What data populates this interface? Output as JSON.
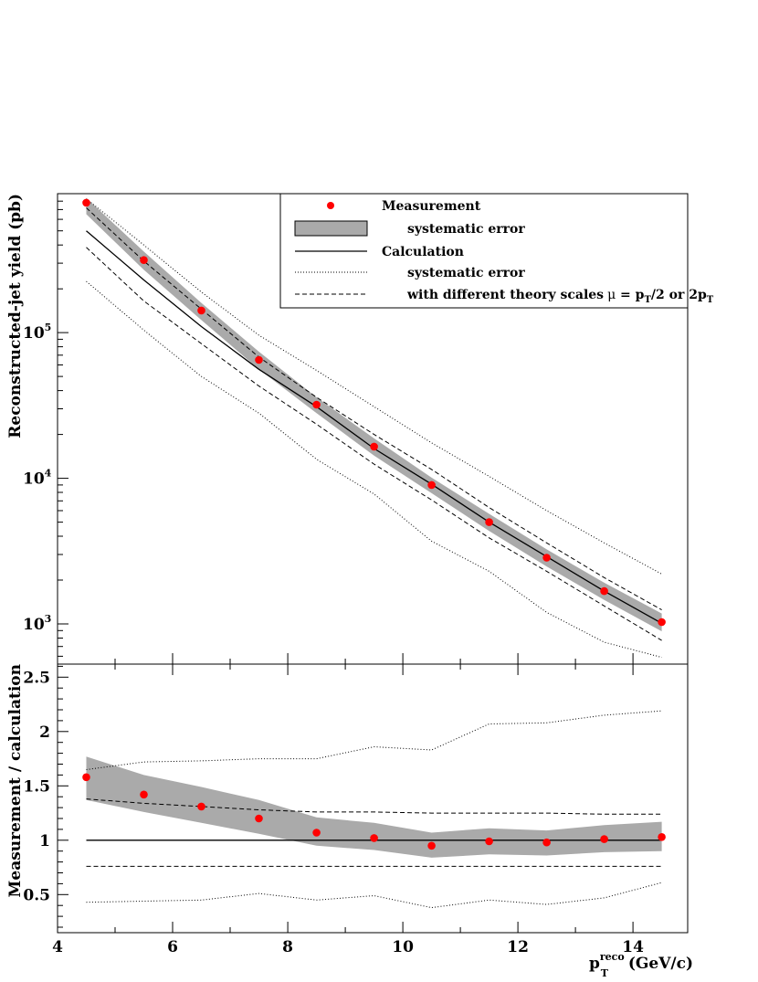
{
  "chart_data": [
    {
      "type": "scatter",
      "panel": "top",
      "ylabel": "Reconstructed-jet yield (pb)",
      "yscale": "log",
      "ylim": [
        530,
        900000
      ],
      "xlim": [
        4,
        14.95
      ],
      "y_ticks_major": [
        {
          "value": 1000,
          "base": "10",
          "exp": "3"
        },
        {
          "value": 10000,
          "base": "10",
          "exp": "4"
        },
        {
          "value": 100000,
          "base": "10",
          "exp": "5"
        }
      ],
      "x": [
        4.5,
        5.5,
        6.5,
        7.5,
        8.5,
        9.5,
        10.5,
        11.5,
        12.5,
        13.5,
        14.5
      ],
      "series": [
        {
          "name": "Measurement",
          "style": "points",
          "color": "#ff0000",
          "values": [
            780000,
            315000,
            142000,
            65000,
            32000,
            16500,
            9000,
            5000,
            2850,
            1680,
            1030
          ]
        },
        {
          "name": "systematic error",
          "style": "band",
          "color": "#aaaaaa",
          "lower": [
            650000,
            270000,
            122000,
            56000,
            28000,
            14300,
            7900,
            4350,
            2480,
            1460,
            890
          ],
          "upper": [
            840000,
            360000,
            160000,
            74000,
            36000,
            18800,
            10100,
            5700,
            3250,
            1920,
            1180
          ]
        },
        {
          "name": "Calculation",
          "style": "solid",
          "color": "#000000",
          "values": [
            500000,
            230000,
            110000,
            56000,
            31000,
            16000,
            9100,
            5000,
            2900,
            1680,
            1010
          ]
        },
        {
          "name": "systematic error",
          "style": "dotted",
          "color": "#000000",
          "upper": [
            830000,
            400000,
            190000,
            96000,
            55000,
            31000,
            17500,
            10300,
            6000,
            3600,
            2200
          ],
          "lower": [
            225000,
            104000,
            50000,
            28000,
            13500,
            7800,
            3700,
            2300,
            1200,
            750,
            590
          ]
        },
        {
          "name": "with different theory scales",
          "style": "dashed",
          "color": "#000000",
          "upper": [
            720000,
            310000,
            145000,
            68000,
            36000,
            20000,
            11500,
            6300,
            3600,
            2080,
            1250
          ],
          "lower": [
            385000,
            165000,
            84000,
            43000,
            23500,
            12500,
            7100,
            3900,
            2300,
            1330,
            770
          ]
        }
      ],
      "legend": {
        "placement": "top-right",
        "entries": [
          {
            "label": "Measurement",
            "style": "points"
          },
          {
            "label": "systematic error",
            "style": "band"
          },
          {
            "label": "Calculation",
            "style": "solid"
          },
          {
            "label": "systematic error",
            "style": "dotted"
          },
          {
            "label": "with different theory scales",
            "style": "dashed",
            "math": {
              "mu": "μ",
              "eq": " = p",
              "sub1": "T",
              "mid": "/2 or 2p",
              "sub2": "T"
            }
          }
        ]
      }
    },
    {
      "type": "scatter",
      "panel": "bottom",
      "ylabel": "Measurement / calculation",
      "xlabel": {
        "main": "p",
        "sup": "reco",
        "sub": "T",
        "unit": " (GeV/c)"
      },
      "xlim": [
        4,
        14.95
      ],
      "ylim": [
        0.15,
        2.62
      ],
      "x_ticks": [
        "4",
        "6",
        "8",
        "10",
        "12",
        "14"
      ],
      "y_ticks": [
        "0.5",
        "1",
        "1.5",
        "2",
        "2.5"
      ],
      "x": [
        4.5,
        5.5,
        6.5,
        7.5,
        8.5,
        9.5,
        10.5,
        11.5,
        12.5,
        13.5,
        14.5
      ],
      "series": [
        {
          "name": "Measurement",
          "style": "points",
          "color": "#ff0000",
          "values": [
            1.58,
            1.42,
            1.31,
            1.2,
            1.07,
            1.02,
            0.95,
            0.99,
            0.98,
            1.01,
            1.03
          ]
        },
        {
          "name": "systematic error",
          "style": "band",
          "color": "#aaaaaa",
          "upper": [
            1.77,
            1.6,
            1.49,
            1.37,
            1.21,
            1.16,
            1.07,
            1.11,
            1.09,
            1.14,
            1.17
          ],
          "lower": [
            1.37,
            1.26,
            1.16,
            1.06,
            0.95,
            0.91,
            0.84,
            0.87,
            0.86,
            0.89,
            0.9
          ]
        },
        {
          "name": "Calculation",
          "style": "solid",
          "color": "#000000",
          "values": [
            1,
            1,
            1,
            1,
            1,
            1,
            1,
            1,
            1,
            1,
            1
          ]
        },
        {
          "name": "systematic error",
          "style": "dotted",
          "color": "#000000",
          "upper": [
            1.65,
            1.72,
            1.73,
            1.75,
            1.75,
            1.86,
            1.83,
            2.07,
            2.08,
            2.15,
            2.19
          ],
          "lower": [
            0.43,
            0.44,
            0.45,
            0.51,
            0.45,
            0.49,
            0.38,
            0.45,
            0.41,
            0.47,
            0.61
          ]
        },
        {
          "name": "with different theory scales",
          "style": "dashed",
          "color": "#000000",
          "upper": [
            1.38,
            1.34,
            1.31,
            1.28,
            1.26,
            1.26,
            1.25,
            1.25,
            1.25,
            1.24,
            1.24
          ],
          "lower": [
            0.76,
            0.76,
            0.76,
            0.76,
            0.76,
            0.76,
            0.76,
            0.76,
            0.76,
            0.76,
            0.76
          ]
        }
      ]
    }
  ]
}
